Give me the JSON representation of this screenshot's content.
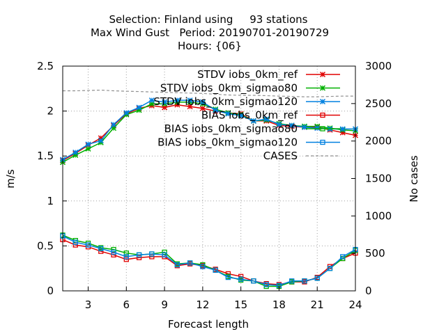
{
  "chart_data": {
    "type": "line",
    "title": [
      "Selection: Finland using     93 stations",
      "Max Wind Gust   Period: 20190701-20190729",
      "Hours: {06}"
    ],
    "xlabel": "Forecast length",
    "ylabel": "m/s",
    "y2label": "No cases",
    "xlim": [
      1,
      24
    ],
    "ylim": [
      0,
      2.5
    ],
    "y2lim": [
      0,
      3000
    ],
    "xticks": [
      3,
      6,
      9,
      12,
      15,
      18,
      21,
      24
    ],
    "yticks": [
      0,
      0.5,
      1,
      1.5,
      2,
      2.5
    ],
    "y2ticks": [
      0,
      500,
      1000,
      1500,
      2000,
      2500,
      3000
    ],
    "grid": true,
    "legend_position": "top-right",
    "x": [
      1,
      2,
      3,
      4,
      5,
      6,
      7,
      8,
      9,
      10,
      11,
      12,
      13,
      14,
      15,
      16,
      17,
      18,
      19,
      20,
      21,
      22,
      23,
      24
    ],
    "series": [
      {
        "name": "STDV iobs_0km_ref",
        "color": "#e00000",
        "marker": "x",
        "axis": "y",
        "values": [
          1.45,
          1.53,
          1.62,
          1.7,
          1.84,
          1.97,
          2.03,
          2.06,
          2.04,
          2.07,
          2.05,
          2.03,
          2.0,
          1.98,
          1.97,
          1.89,
          1.89,
          1.84,
          1.83,
          1.82,
          1.82,
          1.79,
          1.76,
          1.73
        ]
      },
      {
        "name": "STDV iobs_0km_sigmao80",
        "color": "#00b000",
        "marker": "x",
        "axis": "y",
        "values": [
          1.43,
          1.51,
          1.58,
          1.65,
          1.81,
          1.96,
          2.01,
          2.08,
          2.08,
          2.1,
          2.1,
          2.08,
          2.02,
          1.98,
          1.96,
          1.89,
          1.9,
          1.86,
          1.84,
          1.83,
          1.83,
          1.81,
          1.79,
          1.78
        ]
      },
      {
        "name": "STDV iobs_0km_sigmao120",
        "color": "#0080e0",
        "marker": "x",
        "axis": "y",
        "values": [
          1.46,
          1.54,
          1.63,
          1.67,
          1.85,
          1.98,
          2.04,
          2.12,
          2.1,
          2.12,
          2.12,
          2.1,
          2.01,
          1.97,
          1.95,
          1.89,
          1.91,
          1.85,
          1.84,
          1.82,
          1.81,
          1.8,
          1.8,
          1.8
        ]
      },
      {
        "name": "BIAS iobs_0km_ref",
        "color": "#e00000",
        "marker": "square",
        "axis": "y",
        "values": [
          0.57,
          0.51,
          0.49,
          0.44,
          0.4,
          0.35,
          0.37,
          0.38,
          0.38,
          0.28,
          0.3,
          0.28,
          0.24,
          0.19,
          0.16,
          0.11,
          0.08,
          0.07,
          0.1,
          0.1,
          0.15,
          0.27,
          0.36,
          0.42
        ]
      },
      {
        "name": "BIAS iobs_0km_sigmao80",
        "color": "#00b000",
        "marker": "square",
        "axis": "y",
        "values": [
          0.62,
          0.56,
          0.53,
          0.48,
          0.46,
          0.42,
          0.4,
          0.41,
          0.43,
          0.3,
          0.31,
          0.29,
          0.23,
          0.16,
          0.12,
          0.11,
          0.05,
          0.05,
          0.1,
          0.11,
          0.14,
          0.25,
          0.36,
          0.45
        ]
      },
      {
        "name": "BIAS iobs_0km_sigmao120",
        "color": "#0080e0",
        "marker": "square",
        "axis": "y",
        "values": [
          0.61,
          0.54,
          0.51,
          0.47,
          0.43,
          0.38,
          0.4,
          0.41,
          0.4,
          0.29,
          0.31,
          0.27,
          0.23,
          0.15,
          0.13,
          0.11,
          0.07,
          0.06,
          0.11,
          0.11,
          0.14,
          0.25,
          0.38,
          0.46
        ]
      },
      {
        "name": "CASES",
        "color": "#909090",
        "marker": "none",
        "dash": true,
        "axis": "y2",
        "values": [
          2670,
          2670,
          2675,
          2680,
          2670,
          2665,
          2660,
          2655,
          2650,
          2645,
          2640,
          2635,
          2625,
          2615,
          2610,
          2610,
          2605,
          2600,
          2595,
          2590,
          2590,
          2595,
          2600,
          2600
        ]
      }
    ]
  }
}
